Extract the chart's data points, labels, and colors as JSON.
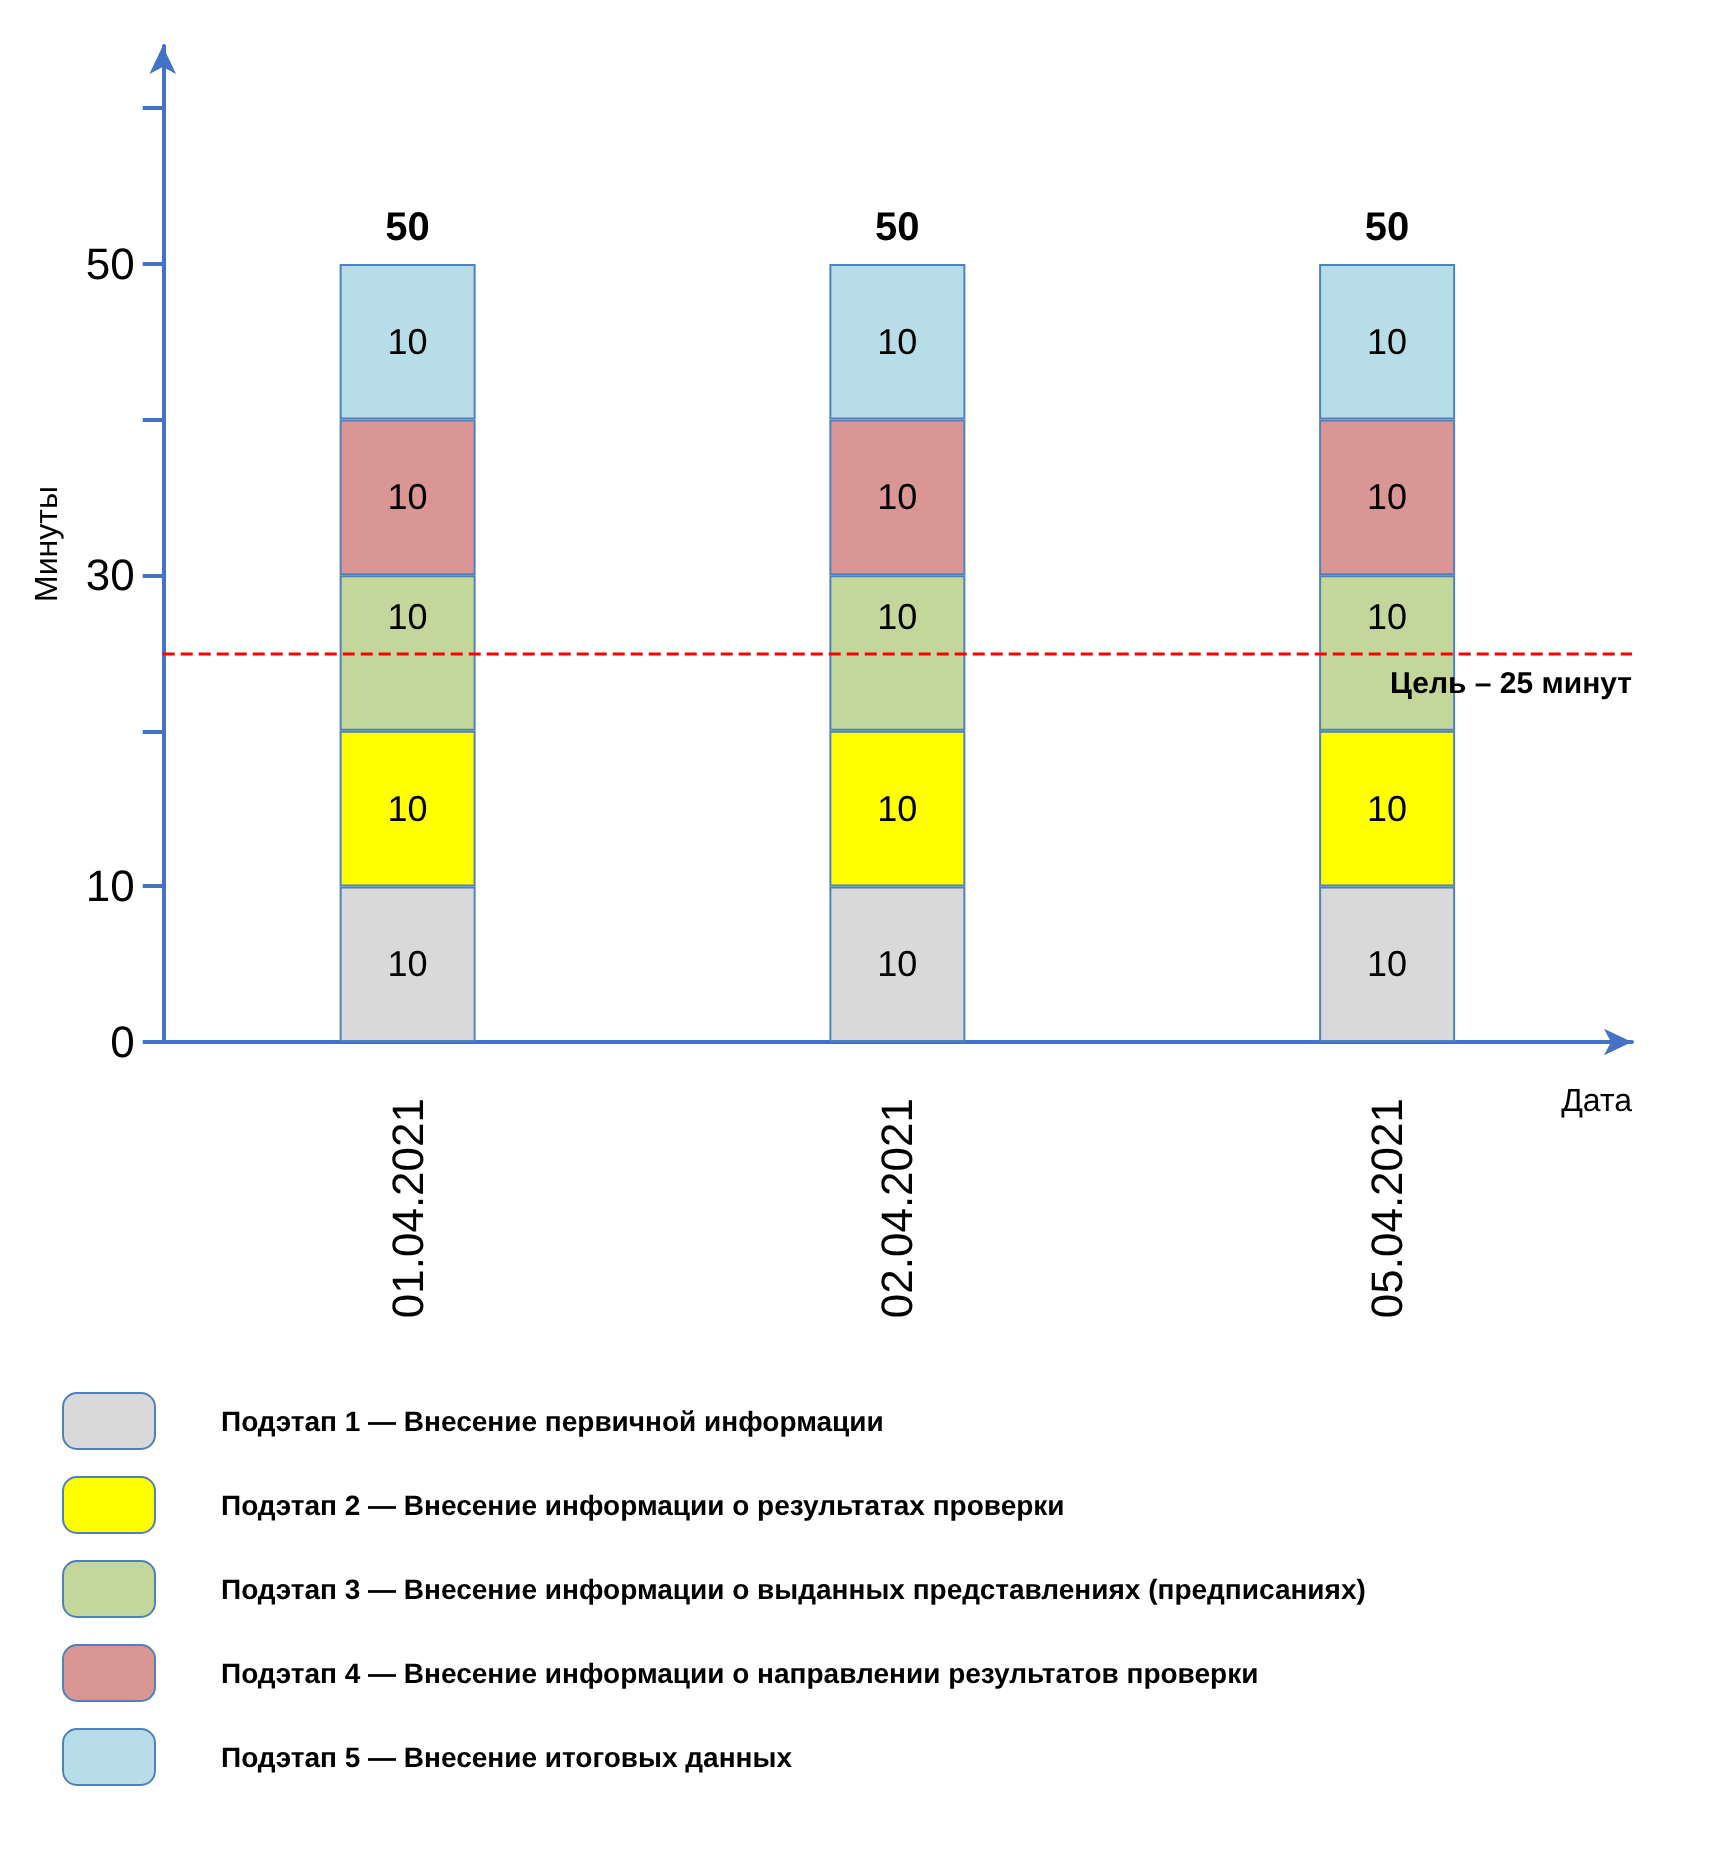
{
  "chart_data": {
    "type": "bar",
    "stacked": true,
    "xlabel": "Дата",
    "ylabel": "Минуты",
    "categories": [
      "01.04.2021",
      "02.04.2021",
      "05.04.2021"
    ],
    "series": [
      {
        "name": "Подэтап 1 — Внесение первичной информации",
        "color": "#d9d9d9",
        "values": [
          10,
          10,
          10
        ]
      },
      {
        "name": "Подэтап 2 — Внесение информации о результатах проверки",
        "color": "#ffff00",
        "values": [
          10,
          10,
          10
        ]
      },
      {
        "name": "Подэтап 3 — Внесение информации о выданных представлениях (предписаниях)",
        "color": "#c4d79b",
        "values": [
          10,
          10,
          10
        ]
      },
      {
        "name": "Подэтап 4 — Внесение информации о направлении результатов проверки",
        "color": "#d99694",
        "values": [
          10,
          10,
          10
        ]
      },
      {
        "name": "Подэтап 5 — Внесение итоговых данных",
        "color": "#b7dee8",
        "values": [
          10,
          10,
          10
        ]
      }
    ],
    "ylim": [
      0,
      64
    ],
    "yticks": [
      0,
      10,
      {
        "value": 20,
        "label": null
      },
      30,
      {
        "value": 40,
        "label": null
      },
      50,
      {
        "value": 60,
        "label": null
      }
    ],
    "ref_lines": [
      {
        "axis": "y",
        "value": 25,
        "label": "Цель – 25 минут",
        "color": "#ff0000",
        "line_style": "dashed"
      }
    ],
    "data_labels": true,
    "totals": [
      "50",
      "50",
      "50"
    ],
    "grid": false,
    "legend": "bottom"
  }
}
